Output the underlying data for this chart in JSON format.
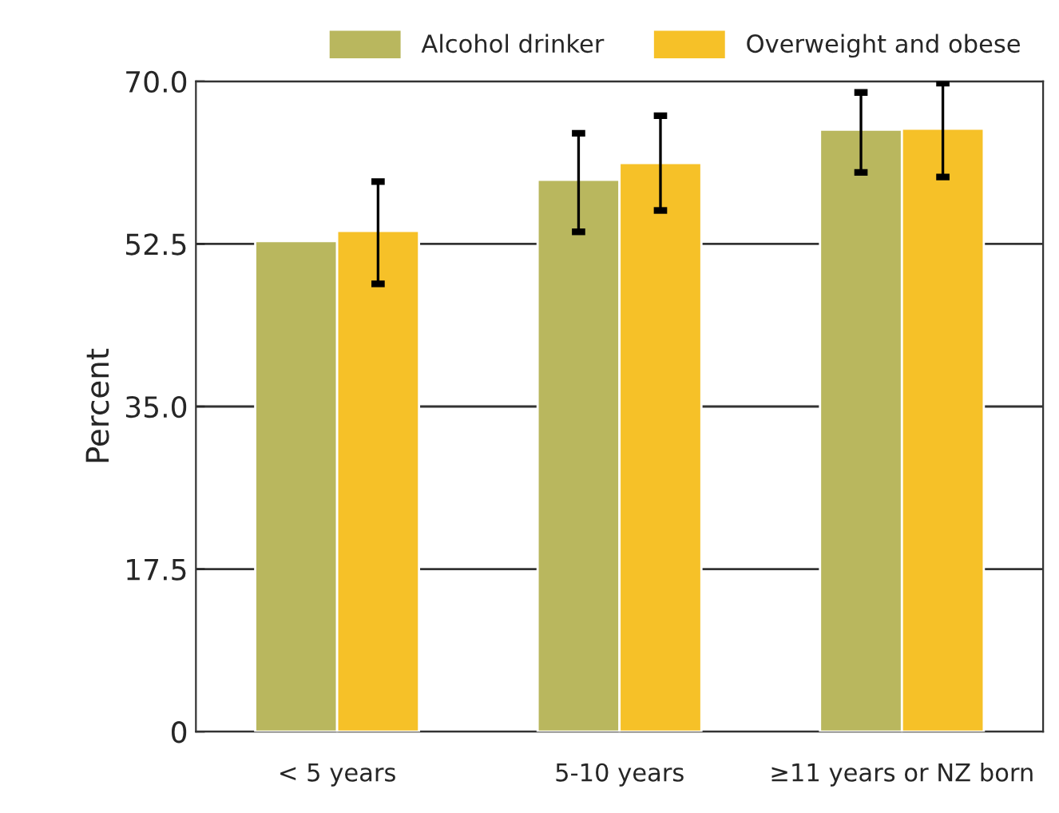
{
  "chart_data": {
    "type": "bar",
    "ylabel": "Percent",
    "categories": [
      "< 5 years",
      "5-10 years",
      "≥11 years or NZ born"
    ],
    "series": [
      {
        "name": "Alcohol drinker",
        "color": "#b9b75e",
        "values": [
          52.8,
          59.4,
          64.8
        ],
        "errors": [
          null,
          [
            53.8,
            64.4
          ],
          [
            60.2,
            68.8
          ]
        ]
      },
      {
        "name": "Overweight and obese",
        "color": "#f6c128",
        "values": [
          53.9,
          61.2,
          64.9
        ],
        "errors": [
          [
            48.2,
            59.2
          ],
          [
            56.1,
            66.3
          ],
          [
            59.7,
            69.8
          ]
        ]
      }
    ],
    "ylim": [
      0,
      70
    ],
    "yticks": [
      {
        "value": 0,
        "label": "0"
      },
      {
        "value": 17.5,
        "label": "17.5"
      },
      {
        "value": 35,
        "label": "35.0"
      },
      {
        "value": 52.5,
        "label": "52.5"
      },
      {
        "value": 70,
        "label": "70.0"
      }
    ],
    "grid": "y",
    "legend": "top right"
  }
}
